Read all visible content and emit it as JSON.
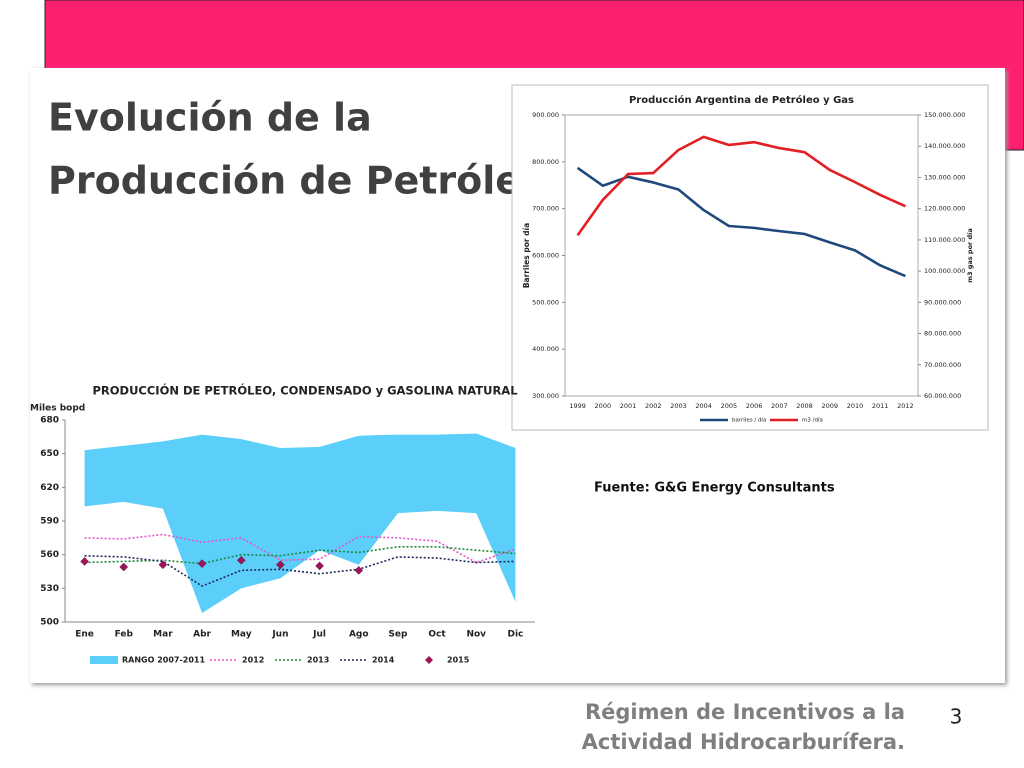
{
  "title_lines": [
    "Evolución de la",
    "Producción de Petróleo"
  ],
  "source": "Fuente: G&G Energy Consultants",
  "footer_lines": [
    "Régimen de Incentivos a la",
    "Actividad Hidrocarburífera."
  ],
  "page_number": 3,
  "chart_data": [
    {
      "type": "line",
      "title": "Producción Argentina de Petróleo y Gas",
      "ylabel": "Barriles por día",
      "y2label": "m3 gas por día",
      "categories": [
        "1999",
        "2000",
        "2001",
        "2002",
        "2003",
        "2004",
        "2005",
        "2006",
        "2007",
        "2008",
        "2009",
        "2010",
        "2011",
        "2012"
      ],
      "ylim": [
        300000,
        900000
      ],
      "yticks": [
        {
          "value": 300000,
          "label": "300.000"
        },
        {
          "value": 400000,
          "label": "400.000"
        },
        {
          "value": 500000,
          "label": "500.000"
        },
        {
          "value": 600000,
          "label": "600.000"
        },
        {
          "value": 700000,
          "label": "700.000"
        },
        {
          "value": 800000,
          "label": "800.000"
        },
        {
          "value": 900000,
          "label": "900.000"
        }
      ],
      "y2lim": [
        60000000,
        150000000
      ],
      "y2ticks": [
        {
          "value": 60000000,
          "label": "60.000.000"
        },
        {
          "value": 70000000,
          "label": "70.000.000"
        },
        {
          "value": 80000000,
          "label": "80.000.000"
        },
        {
          "value": 90000000,
          "label": "90.000.000"
        },
        {
          "value": 100000000,
          "label": "100.000.000"
        },
        {
          "value": 110000000,
          "label": "110.000.000"
        },
        {
          "value": 120000000,
          "label": "120.000.000"
        },
        {
          "value": 130000000,
          "label": "130.000.000"
        },
        {
          "value": 140000000,
          "label": "140.000.000"
        },
        {
          "value": 150000000,
          "label": "150.000.000"
        }
      ],
      "grid": false,
      "series": [
        {
          "name": "barriles / día",
          "color": "#1f497d",
          "values": [
            787000,
            749000,
            768000,
            756000,
            741000,
            697000,
            663000,
            659000,
            652000,
            646000,
            628000,
            611000,
            579000,
            556000
          ]
        },
        {
          "name": "m3 /día",
          "color": "#e31e24",
          "axis": "y2",
          "values": [
            111500000,
            122800000,
            131100000,
            131400000,
            138800000,
            143000000,
            140400000,
            141300000,
            139400000,
            138100000,
            132400000,
            128500000,
            124400000,
            120800000
          ]
        }
      ]
    },
    {
      "type": "line",
      "title": "PRODUCCIÓN DE PETRÓLEO, CONDENSADO y GASOLINA NATURAL",
      "ylabel": "Miles bopd",
      "categories": [
        "Ene",
        "Feb",
        "Mar",
        "Abr",
        "May",
        "Jun",
        "Jul",
        "Ago",
        "Sep",
        "Oct",
        "Nov",
        "Dic"
      ],
      "ylim": [
        500,
        680
      ],
      "yticks": [
        500,
        530,
        560,
        590,
        620,
        650,
        680
      ],
      "grid": false,
      "series": [
        {
          "name": "RANGO 2007-2011",
          "kind": "range",
          "color": "#5bcefa",
          "low": [
            603,
            607,
            601,
            508,
            530,
            539,
            564,
            551,
            597,
            599,
            597,
            518
          ],
          "high": [
            653,
            657,
            661,
            667,
            663,
            655,
            656,
            666,
            667,
            667,
            668,
            655
          ]
        },
        {
          "name": "2012",
          "color": "#e754c8",
          "dashed": true,
          "values": [
            575,
            574,
            578,
            571,
            575,
            555,
            556,
            576,
            575,
            572,
            553,
            565
          ]
        },
        {
          "name": "2013",
          "color": "#1d8a3a",
          "dashed": true,
          "values": [
            553,
            554,
            555,
            552,
            560,
            559,
            564,
            562,
            567,
            567,
            564,
            561
          ]
        },
        {
          "name": "2014",
          "color": "#1f2a5c",
          "dashed": true,
          "values": [
            559,
            558,
            554,
            532,
            546,
            547,
            543,
            547,
            558,
            557,
            553,
            554
          ]
        },
        {
          "name": "2015",
          "color": "#a0125a",
          "kind": "markers",
          "values": [
            554,
            549,
            551,
            552,
            555,
            551,
            550,
            546,
            null,
            null,
            null,
            null
          ]
        }
      ]
    }
  ]
}
